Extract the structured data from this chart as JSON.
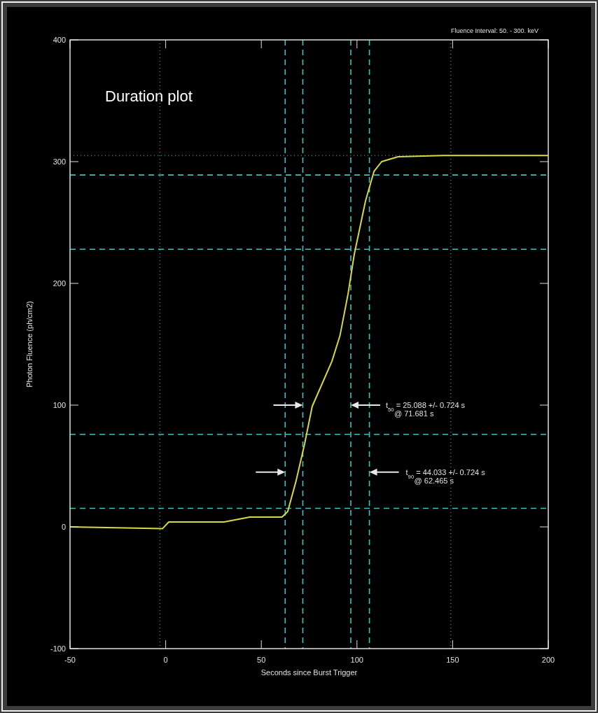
{
  "chart_data": {
    "type": "line",
    "title": "Duration plot",
    "subtitle": "Fluence Interval: 50. - 300. keV",
    "xlabel": "Seconds since Burst Trigger",
    "ylabel": "Photon Fluence (ph/cm2)",
    "xlim": [
      -50,
      200
    ],
    "ylim": [
      -100,
      400
    ],
    "xticks": [
      -50,
      0,
      50,
      100,
      150,
      200
    ],
    "yticks": [
      -100,
      0,
      100,
      200,
      300,
      400
    ],
    "series": [
      {
        "color": "#d8d840",
        "x": [
          -50,
          -1.7,
          1.6,
          30.5,
          43.9,
          60.8,
          63.8,
          68.2,
          72.6,
          76.6,
          86.9,
          91.1,
          95.3,
          98.6,
          104.5,
          108.9,
          112.9,
          121.5,
          145.1,
          200
        ],
        "values": [
          0,
          -1.5,
          4,
          4,
          8,
          8,
          12.6,
          38,
          68,
          99,
          136,
          157,
          191,
          224,
          268,
          292,
          300,
          304,
          305,
          305
        ]
      }
    ],
    "ref_lines": [
      {
        "axis": "x",
        "value": 62.465,
        "color": "#40c0c0",
        "line_style": "dashed"
      },
      {
        "axis": "x",
        "value": 71.681,
        "color": "#40c0c0",
        "line_style": "dashed"
      },
      {
        "axis": "x",
        "value": 96.769,
        "color": "#40c0c0",
        "line_style": "dashed"
      },
      {
        "axis": "x",
        "value": 106.498,
        "color": "#40c0c0",
        "line_style": "dashed"
      },
      {
        "axis": "y",
        "value": 15.2,
        "color": "#40c0c0",
        "line_style": "dashed"
      },
      {
        "axis": "y",
        "value": 76,
        "color": "#40c0c0",
        "line_style": "dashed"
      },
      {
        "axis": "y",
        "value": 228,
        "color": "#40c0c0",
        "line_style": "dashed"
      },
      {
        "axis": "y",
        "value": 289,
        "color": "#40c0c0",
        "line_style": "dashed"
      },
      {
        "axis": "x",
        "value": -3,
        "color": "#2a8a6a",
        "line_style": "dotted"
      },
      {
        "axis": "x",
        "value": 149,
        "color": "#2a8a6a",
        "line_style": "dotted"
      },
      {
        "axis": "y",
        "value": 305,
        "color": "#2a8a6a",
        "line_style": "dotted"
      }
    ],
    "annotations": [
      "t$_{50}$ = 25.088 +/- 0.724 s",
      "@ 71.681 s",
      "t$_{90}$ = 44.033 +/- 0.724 s",
      "@ 62.465 s"
    ]
  }
}
